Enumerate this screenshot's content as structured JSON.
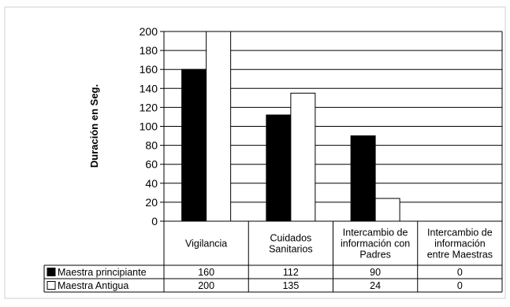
{
  "chart_data": {
    "type": "bar",
    "ylabel": "Duración en Seg.",
    "xlabel": "",
    "ylim": [
      0,
      200
    ],
    "ytick_step": 20,
    "grid": true,
    "legend_placement": "data-table-left",
    "categories": [
      [
        "Vigilancia"
      ],
      [
        "Cuidados",
        "Sanitarios"
      ],
      [
        "Intercambio de",
        "información con",
        "Padres"
      ],
      [
        "Intercambio de",
        "información",
        "entre Maestras"
      ]
    ],
    "series": [
      {
        "name": "Maestra principiante",
        "values": [
          160,
          112,
          90,
          0
        ],
        "color": "#000000"
      },
      {
        "name": "Maestra Antigua",
        "values": [
          200,
          135,
          24,
          0
        ],
        "color": "#ffffff"
      }
    ]
  }
}
